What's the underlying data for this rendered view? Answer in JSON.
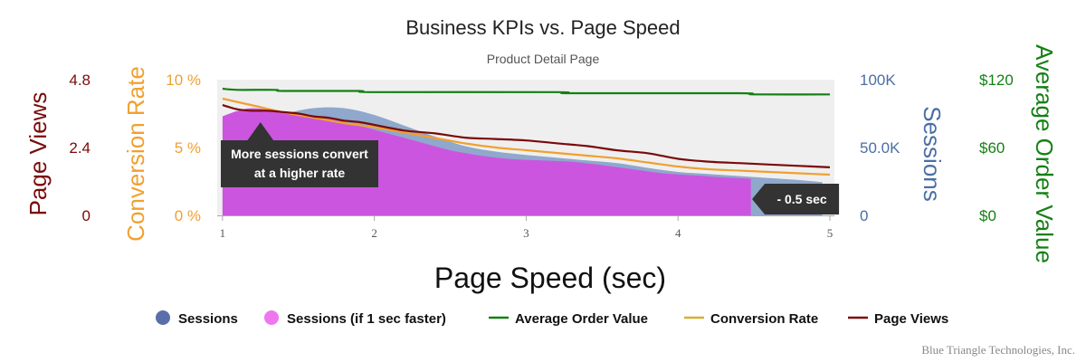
{
  "chart_data": {
    "type": "area",
    "title": "Business KPIs vs. Page Speed",
    "subtitle": "Product Detail Page",
    "xlabel": "Page Speed (sec)",
    "xlim": [
      1,
      5
    ],
    "x_ticks": [
      "1",
      "2",
      "3",
      "4",
      "5"
    ],
    "axes": [
      {
        "key": "pv",
        "title": "Page Views",
        "color": "#7a0a0a",
        "side": "left",
        "min": 0,
        "max": 4.8,
        "tick_labels": [
          "0",
          "2.4",
          "4.8"
        ]
      },
      {
        "key": "cr",
        "title": "Conversion Rate",
        "color": "#f0a030",
        "side": "left",
        "min": 0,
        "max": 10,
        "tick_labels": [
          "0 %",
          "5 %",
          "10 %"
        ]
      },
      {
        "key": "sess",
        "title": "Sessions",
        "color": "#4a6fa5",
        "side": "right",
        "min": 0,
        "max": 100000,
        "tick_labels": [
          "0",
          "50.0K",
          "100K"
        ]
      },
      {
        "key": "aov",
        "title": "Average Order Value",
        "color": "#148014",
        "side": "right",
        "min": 0,
        "max": 120,
        "tick_labels": [
          "$0",
          "$60",
          "$120"
        ]
      }
    ],
    "series": [
      {
        "name": "Sessions",
        "kind": "area",
        "axis": "sess",
        "color": "#8fa8cc",
        "x": [
          1,
          1.2,
          1.4,
          1.6,
          1.8,
          2.0,
          2.2,
          2.4,
          2.6,
          2.8,
          3.0,
          3.2,
          3.4,
          3.6,
          3.8,
          4.0,
          4.2,
          4.4,
          4.6,
          4.8,
          4.95
        ],
        "y": [
          42000,
          62000,
          74000,
          79000,
          79000,
          74000,
          66000,
          58000,
          51000,
          47000,
          44500,
          42500,
          40500,
          38500,
          35000,
          32000,
          30500,
          29000,
          27500,
          26000,
          24500
        ]
      },
      {
        "name": "Sessions (if 1 sec faster)",
        "kind": "area",
        "axis": "sess",
        "color": "#cc55e0",
        "x": [
          1,
          1.1,
          1.2,
          1.35,
          1.5,
          1.7,
          1.9,
          2.1,
          2.3,
          2.5,
          2.7,
          2.9,
          3.1,
          3.3,
          3.5,
          3.7,
          3.9,
          4.1,
          4.3,
          4.48
        ],
        "y": [
          73000,
          77000,
          79000,
          77000,
          74000,
          71000,
          66000,
          60000,
          54000,
          48000,
          44000,
          41500,
          40500,
          39500,
          37000,
          34000,
          31000,
          29500,
          28000,
          27000
        ]
      },
      {
        "name": "Average Order Value",
        "kind": "line",
        "axis": "aov",
        "color": "#148014",
        "x": [
          1,
          1.1,
          1.35,
          1.4,
          1.9,
          2.0,
          3.2,
          3.3,
          4.4,
          4.5,
          5
        ],
        "y": [
          112,
          111,
          111,
          110,
          110,
          109,
          109,
          108,
          108,
          107,
          107
        ]
      },
      {
        "name": "Conversion Rate",
        "kind": "line",
        "axis": "cr",
        "color": "#f0a030",
        "x": [
          1,
          1.2,
          1.4,
          1.6,
          1.8,
          2.0,
          2.2,
          2.4,
          2.6,
          2.8,
          3.0,
          3.2,
          3.4,
          3.6,
          3.8,
          4.0,
          4.2,
          4.4,
          4.6,
          4.8,
          5
        ],
        "y": [
          8.6,
          8.1,
          7.6,
          7.2,
          6.8,
          6.5,
          6.1,
          5.7,
          5.3,
          5.0,
          4.8,
          4.6,
          4.4,
          4.2,
          3.9,
          3.6,
          3.4,
          3.3,
          3.2,
          3.1,
          3.0
        ]
      },
      {
        "name": "Page Views",
        "kind": "line",
        "axis": "pv",
        "color": "#7a0a0a",
        "x": [
          1,
          1.1,
          1.2,
          1.3,
          1.4,
          1.5,
          1.6,
          1.7,
          1.8,
          1.9,
          2.0,
          2.2,
          2.4,
          2.6,
          2.8,
          3.0,
          3.2,
          3.4,
          3.6,
          3.8,
          4.0,
          4.2,
          4.4,
          4.6,
          4.8,
          5
        ],
        "y": [
          3.9,
          3.75,
          3.7,
          3.7,
          3.65,
          3.6,
          3.5,
          3.45,
          3.35,
          3.3,
          3.2,
          3.0,
          2.9,
          2.75,
          2.7,
          2.65,
          2.55,
          2.45,
          2.3,
          2.2,
          2.0,
          1.9,
          1.85,
          1.8,
          1.75,
          1.7
        ]
      }
    ],
    "annotations": [
      {
        "text_lines": [
          "More sessions convert",
          "at a higher rate"
        ],
        "x": 1.25
      },
      {
        "text": "- 0.5 sec",
        "x": 4.5
      }
    ],
    "legend": {
      "placement": "bottom"
    },
    "grid": false,
    "plot_background": "#efefef"
  },
  "credit": "Blue Triangle Technologies, Inc."
}
